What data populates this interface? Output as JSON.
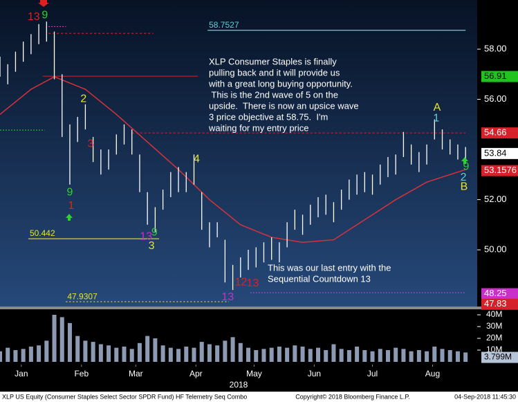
{
  "chart_data": {
    "type": "ohlc",
    "xlim": [
      4,
      250
    ],
    "ylim": [
      47.74,
      59.96
    ],
    "yticks": [
      {
        "value": 50,
        "label": "50.00"
      },
      {
        "value": 52,
        "label": "52.00"
      },
      {
        "value": 56,
        "label": "56.00"
      },
      {
        "value": 58,
        "label": "58.00"
      }
    ],
    "xticks": [
      {
        "value": 15,
        "label": "Jan"
      },
      {
        "value": 46,
        "label": "Feb"
      },
      {
        "value": 74,
        "label": "Mar"
      },
      {
        "value": 105,
        "label": "Apr"
      },
      {
        "value": 135,
        "label": "May"
      },
      {
        "value": 166,
        "label": "Jun"
      },
      {
        "value": 196,
        "label": "Jul"
      },
      {
        "value": 227,
        "label": "Aug"
      }
    ],
    "year": "2018",
    "price": {
      "color": "#ffffff",
      "x": [
        4,
        8,
        12,
        16,
        20,
        24,
        28,
        32,
        36,
        40,
        44,
        48,
        52,
        56,
        60,
        64,
        68,
        72,
        76,
        80,
        84,
        88,
        92,
        96,
        100,
        104,
        108,
        112,
        116,
        120,
        124,
        128,
        132,
        136,
        140,
        144,
        148,
        152,
        156,
        160,
        164,
        168,
        172,
        176,
        180,
        184,
        188,
        192,
        196,
        200,
        204,
        208,
        212,
        216,
        220,
        224,
        228,
        232,
        236,
        240,
        244
      ],
      "high": [
        57.7,
        57.4,
        57.9,
        58.3,
        58.6,
        59.0,
        59.1,
        58.7,
        57.0,
        55.0,
        55.3,
        55.8,
        54.5,
        54.0,
        54.0,
        54.6,
        55.0,
        54.8,
        53.8,
        52.3,
        51.7,
        52.4,
        53.1,
        53.3,
        53.1,
        53.8,
        52.3,
        51.1,
        51.1,
        50.4,
        49.4,
        49.7,
        50.0,
        50.1,
        50.3,
        50.5,
        50.3,
        51.1,
        51.6,
        51.4,
        51.8,
        52.1,
        52.2,
        51.9,
        52.4,
        52.8,
        53.0,
        53.1,
        53.0,
        53.4,
        53.7,
        53.8,
        54.7,
        54.2,
        53.9,
        54.2,
        55.2,
        54.8,
        54.4,
        54.2,
        54.1
      ],
      "low": [
        56.9,
        56.6,
        57.1,
        57.5,
        57.8,
        58.2,
        58.3,
        56.8,
        54.5,
        52.6,
        54.3,
        54.8,
        53.5,
        53.0,
        53.2,
        53.8,
        54.2,
        53.8,
        52.3,
        51.0,
        50.7,
        51.6,
        52.1,
        52.3,
        52.3,
        52.6,
        50.8,
        50.1,
        50.5,
        48.7,
        48.4,
        48.9,
        49.2,
        49.3,
        49.5,
        49.6,
        49.5,
        50.1,
        50.8,
        50.6,
        51.0,
        51.3,
        51.4,
        51.1,
        51.6,
        52.0,
        52.2,
        52.3,
        52.2,
        52.6,
        52.9,
        53.0,
        53.7,
        53.4,
        53.1,
        53.4,
        54.4,
        54.0,
        53.8,
        53.6,
        53.5
      ]
    },
    "moving_average": {
      "color": "#d8323c",
      "x": [
        4,
        20,
        32,
        48,
        64,
        80,
        96,
        112,
        128,
        144,
        160,
        176,
        192,
        208,
        224,
        244
      ],
      "values": [
        55.4,
        56.4,
        56.9,
        56.4,
        55.4,
        54.3,
        53.2,
        52.0,
        51.0,
        50.5,
        50.3,
        50.4,
        51.2,
        52.0,
        52.7,
        53.2
      ]
    },
    "levels": [
      {
        "value": 58.7527,
        "color": "#5fd3d9",
        "from": 111,
        "to": 244,
        "dash": "",
        "labeled": true
      },
      {
        "value": 58.9,
        "color": "#d040d0",
        "from": 29,
        "to": 38,
        "dash": "2 2",
        "labeled": false
      },
      {
        "value": 58.63,
        "color": "#c0202a",
        "from": 29,
        "to": 83,
        "dash": "3 3",
        "labeled": false
      },
      {
        "value": 56.92,
        "color": "#c0202a",
        "from": 26,
        "to": 106,
        "dash": "",
        "labeled": false
      },
      {
        "value": 54.77,
        "color": "#2bb52b",
        "from": 4,
        "to": 27,
        "dash": "2 2",
        "labeled": false
      },
      {
        "value": 54.66,
        "color": "#c0202a",
        "from": 72,
        "to": 244,
        "dash": "3 3",
        "labeled": false
      },
      {
        "value": 50.442,
        "color": "#e6e62a",
        "from": 18.6,
        "to": 86,
        "dash": "",
        "labeled": true
      },
      {
        "value": 48.29,
        "color": "#d040d0",
        "from": 133,
        "to": 244,
        "dash": "2 2",
        "labeled": false
      },
      {
        "value": 47.9307,
        "color": "#e6e62a",
        "from": 38,
        "to": 122,
        "dash": "2 3",
        "labeled": true
      }
    ],
    "boxes": [
      {
        "value": 56.91,
        "color": "#1fc41f",
        "text_color": "#000000"
      },
      {
        "value": 54.66,
        "color": "#d8202a",
        "text_color": "#ffffff"
      },
      {
        "value": 53.84,
        "color": "#ffffff",
        "text_color": "#000000"
      },
      {
        "value": 53.1576,
        "color": "#d8202a",
        "text_color": "#ffffff"
      },
      {
        "value": 48.25,
        "color": "#c830c8",
        "text_color": "#ffffff"
      },
      {
        "value": 47.83,
        "color": "#d8202a",
        "text_color": "#ffffff"
      }
    ],
    "annotations": [
      {
        "text": "13",
        "x": 21.4,
        "y": 59.27,
        "color": "#e02020"
      },
      {
        "text": "9",
        "x": 27.1,
        "y": 59.35,
        "color": "#30d030"
      },
      {
        "text": "9",
        "x": 40,
        "y": 52.29,
        "color": "#30d030"
      },
      {
        "text": "1",
        "x": 40.7,
        "y": 51.74,
        "color": "#e02020"
      },
      {
        "text": "2",
        "x": 47.1,
        "y": 56.01,
        "color": "#e6e62a"
      },
      {
        "text": "3",
        "x": 50.7,
        "y": 54.22,
        "color": "#e02020"
      },
      {
        "text": "4",
        "x": 105.4,
        "y": 53.61,
        "color": "#e6e62a"
      },
      {
        "text": "13",
        "x": 79.3,
        "y": 50.52,
        "color": "#c830c8"
      },
      {
        "text": "9",
        "x": 83.6,
        "y": 50.69,
        "color": "#30d030"
      },
      {
        "text": "3",
        "x": 82.1,
        "y": 50.14,
        "color": "#e6e62a"
      },
      {
        "text": "12",
        "x": 128.2,
        "y": 48.7,
        "color": "#e02020"
      },
      {
        "text": "13",
        "x": 134.3,
        "y": 48.65,
        "color": "#e02020"
      },
      {
        "text": "13",
        "x": 121.4,
        "y": 48.1,
        "color": "#c830c8"
      },
      {
        "text": "A",
        "x": 229.3,
        "y": 55.66,
        "color": "#e6e62a"
      },
      {
        "text": "1",
        "x": 228.9,
        "y": 55.24,
        "color": "#5fd3d9"
      },
      {
        "text": "2",
        "x": 242.9,
        "y": 52.87,
        "color": "#5fd3d9"
      },
      {
        "text": "9",
        "x": 244.3,
        "y": 53.31,
        "color": "#30d030"
      },
      {
        "text": "B",
        "x": 243.2,
        "y": 52.51,
        "color": "#e6e62a"
      }
    ],
    "notes": [
      [
        "XLP Consumer Staples is finally",
        "pulling back and it will provide us",
        "with a great long buying opportunity.",
        " This is the 2nd wave of 5 on the",
        "upside.  There is now an upsice wave",
        "3 price objective at 58.75.  I'm",
        "waiting for my entry price"
      ],
      [
        "This was our last entry with the",
        "Sequential Countdown 13"
      ]
    ],
    "volume": {
      "color": "#8c9bb3",
      "ylim": [
        0,
        44.7
      ],
      "yticks": [
        {
          "value": 10,
          "label": "10M"
        },
        {
          "value": 20,
          "label": "20M"
        },
        {
          "value": 30,
          "label": "30M"
        },
        {
          "value": 40,
          "label": "40M"
        }
      ],
      "values": [
        9,
        12,
        10,
        11,
        13,
        14,
        18,
        40,
        38,
        33,
        22,
        18,
        17,
        15,
        14,
        12,
        13,
        11,
        16,
        22,
        20,
        14,
        12,
        11,
        13,
        12,
        17,
        15,
        14,
        18,
        21,
        16,
        12,
        10,
        11,
        12,
        13,
        12,
        14,
        13,
        11,
        12,
        10,
        15,
        11,
        10,
        13,
        10,
        9,
        11,
        10,
        12,
        11,
        9,
        10,
        9,
        13,
        11,
        10,
        9,
        8
      ],
      "current": {
        "value": 3.799,
        "label": "3.799M"
      }
    },
    "footer": {
      "left": "XLP US Equity (Consumer Staples Select Sector SPDR Fund) HF Telemetry Seq Combo",
      "center": "Copyright© 2018 Bloomberg Finance L.P.",
      "right": "04-Sep-2018 11:45:30"
    }
  }
}
